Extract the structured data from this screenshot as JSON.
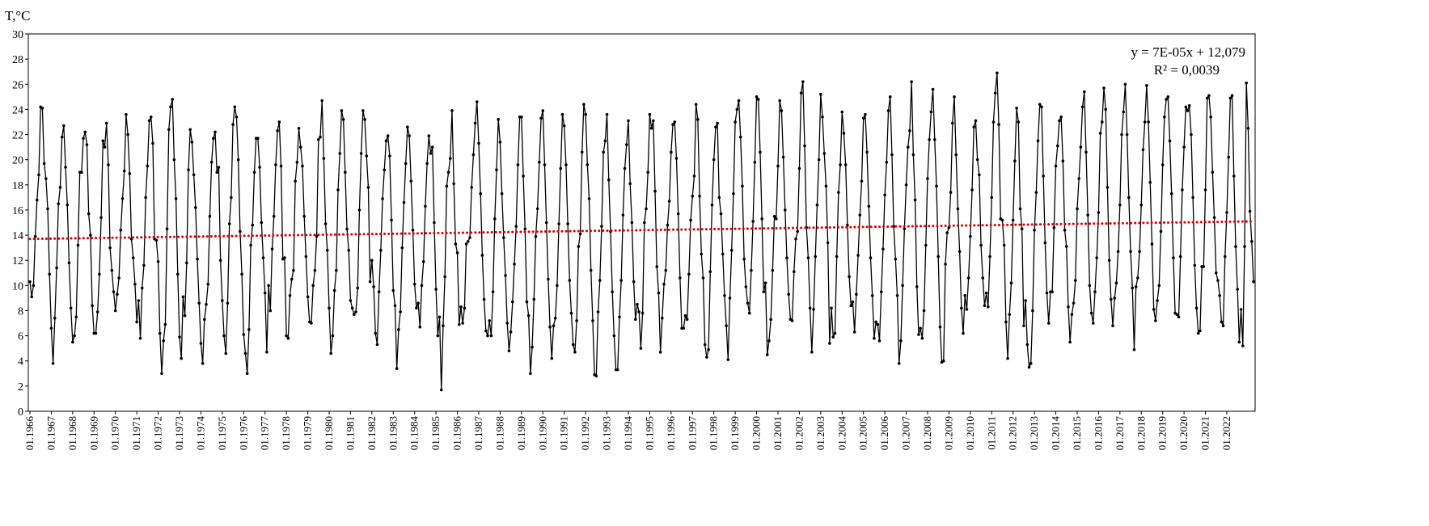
{
  "chart_data": {
    "type": "line",
    "ylabel": "T,°C",
    "xlabel": "",
    "title": "",
    "ylim": [
      0,
      30
    ],
    "yticks": [
      0,
      2,
      4,
      6,
      8,
      10,
      12,
      14,
      16,
      18,
      20,
      22,
      24,
      26,
      28,
      30
    ],
    "xtick_labels": [
      "01.1966",
      "01.1967",
      "01.1968",
      "01.1969",
      "01.1970",
      "01.1971",
      "01.1972",
      "01.1973",
      "01.1974",
      "01.1975",
      "01.1976",
      "01.1977",
      "01.1978",
      "01.1979",
      "01.1980",
      "01.1981",
      "01.1982",
      "01.1983",
      "01.1984",
      "01.1985",
      "01.1986",
      "01.1987",
      "01.1988",
      "01.1989",
      "01.1990",
      "01.1991",
      "01.1992",
      "01.1993",
      "01.1994",
      "01.1995",
      "01.1996",
      "01.1997",
      "01.1998",
      "01.1999",
      "01.2000",
      "01.2001",
      "01.2002",
      "01.2003",
      "01.2004",
      "01.2005",
      "01.2006",
      "01.2007",
      "01.2008",
      "01.2009",
      "01.2010",
      "01.2011",
      "01.2012",
      "01.2013",
      "01.2014",
      "01.2015",
      "01.2016",
      "01.2017",
      "01.2018",
      "01.2019",
      "01.2020",
      "01.2021",
      "01.2022"
    ],
    "grid": false,
    "frequency": "monthly",
    "start": "01.1966",
    "end": "12.2022",
    "series": [
      {
        "color": "#000000",
        "marker": "circle",
        "yearly": {
          "1966": [
            10.3,
            9.1,
            10.0,
            13.9,
            16.8,
            18.8,
            24.2,
            24.1,
            19.7,
            18.5,
            16.1,
            10.9
          ],
          "1967": [
            6.6,
            3.8,
            7.4,
            11.4,
            16.5,
            17.8,
            21.8,
            22.7,
            19.4,
            16.4,
            11.8,
            8.2
          ],
          "1968": [
            5.5,
            6.0,
            7.5,
            13.2,
            19.0,
            19.0,
            21.7,
            22.2,
            21.2,
            15.7,
            14.0,
            8.4
          ],
          "1969": [
            6.2,
            6.2,
            7.9,
            10.9,
            15.4,
            21.5,
            21.0,
            22.9,
            19.6,
            13.0,
            11.2,
            9.5
          ],
          "1970": [
            8.0,
            9.3,
            10.6,
            14.4,
            16.9,
            19.1,
            23.6,
            22.0,
            18.9,
            13.7,
            12.2,
            10.1
          ],
          "1971": [
            7.1,
            8.8,
            5.8,
            9.8,
            11.6,
            17.0,
            19.5,
            23.1,
            23.4,
            21.3,
            13.7,
            13.6
          ],
          "1972": [
            11.9,
            6.2,
            3.0,
            5.6,
            6.9,
            14.5,
            22.4,
            24.2,
            24.8,
            20.0,
            16.9,
            10.9
          ],
          "1973": [
            5.9,
            4.2,
            9.1,
            7.6,
            11.8,
            19.2,
            22.4,
            21.4,
            18.8,
            16.2,
            12.1,
            8.6
          ],
          "1974": [
            5.4,
            3.8,
            7.3,
            8.5,
            10.1,
            15.5,
            19.8,
            21.7,
            22.2,
            19.0,
            19.4,
            12.0
          ],
          "1975": [
            8.8,
            6.0,
            4.6,
            8.6,
            14.9,
            17.0,
            22.8,
            24.2,
            23.4,
            20.0,
            14.3,
            10.9
          ],
          "1976": [
            6.1,
            4.6,
            3.0,
            6.5,
            13.2,
            14.8,
            19.0,
            21.7,
            21.7,
            19.4,
            15.0,
            12.2
          ],
          "1977": [
            9.4,
            4.7,
            10.0,
            8.0,
            12.9,
            15.5,
            19.6,
            22.3,
            23.0,
            19.5,
            12.1,
            12.2
          ],
          "1978": [
            6.0,
            5.8,
            9.2,
            10.5,
            11.2,
            18.3,
            19.8,
            22.5,
            21.0,
            19.5,
            15.5,
            12.3
          ],
          "1979": [
            9.1,
            7.1,
            7.0,
            10.0,
            11.2,
            13.9,
            21.6,
            21.8,
            24.7,
            20.1,
            14.9,
            12.8
          ],
          "1980": [
            8.2,
            4.6,
            6.0,
            9.6,
            11.2,
            17.6,
            20.5,
            23.9,
            23.2,
            19.0,
            14.5,
            12.8
          ],
          "1981": [
            8.8,
            8.2,
            7.7,
            7.9,
            9.8,
            16.0,
            20.5,
            23.9,
            23.2,
            20.3,
            17.8,
            10.3
          ],
          "1982": [
            12.0,
            9.9,
            6.2,
            5.3,
            9.5,
            12.8,
            16.9,
            19.2,
            21.5,
            21.9,
            20.3,
            15.2
          ],
          "1983": [
            9.6,
            8.4,
            3.4,
            6.5,
            7.9,
            13.0,
            16.6,
            19.7,
            22.6,
            21.9,
            18.3,
            14.4
          ],
          "1984": [
            10.1,
            8.2,
            8.6,
            6.7,
            10.0,
            11.9,
            16.3,
            19.7,
            21.9,
            20.5,
            21.0,
            15.0
          ],
          "1985": [
            9.7,
            6.0,
            7.5,
            1.7,
            6.8,
            10.7,
            17.9,
            19.0,
            20.1,
            23.9,
            18.1,
            13.3
          ],
          "1986": [
            12.6,
            6.9,
            8.3,
            7.0,
            8.2,
            13.3,
            13.5,
            13.8,
            17.8,
            20.4,
            22.9,
            24.6
          ],
          "1987": [
            21.3,
            17.3,
            12.4,
            8.9,
            6.4,
            6.0,
            7.2,
            6.0,
            9.5,
            15.3,
            19.2,
            23.2
          ],
          "1988": [
            21.4,
            17.3,
            13.8,
            10.8,
            7.0,
            4.8,
            6.3,
            8.7,
            11.7,
            14.7,
            19.6,
            23.4
          ],
          "1989": [
            23.4,
            18.7,
            14.5,
            8.7,
            7.6,
            3.0,
            5.1,
            8.9,
            13.9,
            16.1,
            19.8,
            23.3
          ],
          "1990": [
            23.9,
            19.6,
            15.0,
            10.5,
            6.7,
            4.2,
            6.8,
            7.4,
            10.0,
            14.9,
            19.3,
            23.6
          ],
          "1991": [
            22.7,
            19.6,
            14.9,
            10.4,
            7.8,
            5.3,
            4.7,
            7.2,
            13.1,
            14.1,
            20.6,
            24.4
          ],
          "1992": [
            23.6,
            19.6,
            16.9,
            11.2,
            7.2,
            2.9,
            2.8,
            7.9,
            10.4,
            14.7,
            20.6,
            21.5
          ],
          "1993": [
            23.6,
            18.4,
            14.3,
            9.5,
            6.0,
            3.3,
            3.3,
            7.5,
            10.4,
            15.6,
            19.3,
            21.2
          ],
          "1994": [
            23.1,
            18.1,
            15.0,
            10.3,
            7.3,
            8.5,
            7.9,
            5.0,
            7.8,
            15.0,
            16.1,
            19.0
          ],
          "1995": [
            23.6,
            22.5,
            23.1,
            17.5,
            11.5,
            9.4,
            4.7,
            7.4,
            10.1,
            11.2,
            14.8,
            16.7
          ],
          "1996": [
            20.6,
            22.8,
            23.0,
            20.1,
            15.7,
            10.6,
            6.6,
            6.6,
            7.6,
            7.3,
            10.9,
            15.2
          ],
          "1997": [
            17.1,
            18.7,
            24.4,
            23.2,
            17.1,
            12.5,
            10.6,
            5.3,
            4.3,
            4.9,
            11.1,
            16.4
          ],
          "1998": [
            20.0,
            22.6,
            22.9,
            17.0,
            15.7,
            12.5,
            9.2,
            6.8,
            4.1,
            9.0,
            12.8,
            17.3
          ],
          "1999": [
            23.0,
            24.0,
            24.7,
            21.8,
            17.9,
            12.1,
            9.9,
            8.6,
            7.8,
            11.2,
            15.1,
            19.8
          ],
          "2000": [
            25.0,
            24.8,
            20.6,
            15.3,
            9.5,
            10.2,
            4.5,
            5.6,
            7.3,
            11.2,
            15.5,
            15.3
          ],
          "2001": [
            19.5,
            24.7,
            23.9,
            20.2,
            16.0,
            12.2,
            9.3,
            7.3,
            7.2,
            11.1,
            13.7,
            14.3
          ],
          "2002": [
            19.3,
            25.3,
            26.2,
            21.1,
            14.6,
            12.2,
            8.2,
            4.7,
            8.1,
            12.3,
            16.4,
            20.0
          ],
          "2003": [
            25.2,
            23.4,
            20.5,
            17.9,
            13.4,
            5.4,
            8.2,
            5.9,
            6.2,
            12.3,
            17.4,
            19.6
          ],
          "2004": [
            23.8,
            22.1,
            19.6,
            14.8,
            10.7,
            8.4,
            8.7,
            6.3,
            9.3,
            12.4,
            15.6,
            18.3
          ],
          "2005": [
            23.3,
            23.6,
            20.6,
            16.3,
            12.2,
            9.2,
            5.8,
            7.1,
            6.9,
            5.6,
            9.5,
            12.9
          ],
          "2006": [
            17.2,
            19.8,
            23.9,
            25.0,
            20.4,
            14.7,
            12.1,
            9.2,
            3.8,
            5.6,
            10.0,
            14.5
          ],
          "2007": [
            18.0,
            21.0,
            22.3,
            26.2,
            20.4,
            16.8,
            9.9,
            6.1,
            6.6,
            5.8,
            8.0,
            13.2
          ],
          "2008": [
            18.5,
            21.6,
            23.8,
            25.6,
            21.6,
            17.9,
            12.3,
            6.7,
            3.9,
            4.0,
            11.7,
            14.2
          ],
          "2009": [
            14.6,
            17.4,
            22.9,
            25.0,
            20.4,
            16.1,
            12.7,
            8.2,
            6.2,
            9.2,
            8.1,
            10.6
          ],
          "2010": [
            13.9,
            17.6,
            22.6,
            23.1,
            20.0,
            18.8,
            13.2,
            10.6,
            8.4,
            9.4,
            8.3,
            12.3
          ],
          "2011": [
            17.0,
            23.0,
            25.3,
            26.9,
            22.8,
            15.3,
            15.2,
            13.2,
            7.1,
            4.2,
            7.7,
            10.2
          ],
          "2012": [
            15.2,
            19.9,
            24.1,
            23.0,
            16.1,
            14.5,
            6.8,
            8.8,
            5.3,
            3.5,
            3.8,
            8.0
          ],
          "2013": [
            14.4,
            17.4,
            21.5,
            24.4,
            24.2,
            18.7,
            13.4,
            9.4,
            7.0,
            9.5,
            9.5,
            14.6
          ],
          "2014": [
            19.5,
            21.1,
            23.1,
            23.4,
            19.9,
            14.4,
            13.1,
            8.3,
            5.5,
            7.7,
            8.6,
            10.4
          ],
          "2015": [
            16.1,
            18.5,
            21.0,
            24.2,
            25.4,
            20.6,
            15.6,
            10.0,
            7.8,
            7.0,
            9.5,
            12.2
          ],
          "2016": [
            15.8,
            22.1,
            23.0,
            25.7,
            24.0,
            17.8,
            12.0,
            8.9,
            6.8,
            9.0,
            10.2,
            12.7
          ],
          "2017": [
            16.4,
            22.0,
            23.8,
            26.0,
            22.0,
            17.0,
            12.7,
            9.8,
            4.9,
            9.9,
            10.6,
            12.7
          ],
          "2018": [
            16.4,
            20.8,
            23.0,
            25.9,
            23.0,
            18.2,
            13.3,
            8.1,
            7.2,
            8.8,
            10.0,
            14.3
          ],
          "2019": [
            19.6,
            23.4,
            24.8,
            25.0,
            21.5,
            17.3,
            12.2,
            7.8,
            7.7,
            7.5,
            12.3,
            17.6
          ],
          "2020": [
            21.0,
            24.2,
            23.9,
            24.3,
            22.0,
            17.0,
            11.6,
            8.2,
            6.2,
            6.4,
            11.5,
            11.5
          ],
          "2021": [
            17.6,
            24.9,
            25.1,
            23.4,
            19.0,
            15.4,
            11.0,
            10.4,
            9.2,
            7.1,
            6.8,
            12.3
          ],
          "2022": [
            15.8,
            20.2,
            24.9,
            25.1,
            18.7,
            13.1,
            9.7,
            5.5,
            8.1,
            5.2,
            13.1,
            26.1
          ]
        },
        "tail": [
          22.5,
          15.9,
          13.5,
          10.3
        ]
      },
      {
        "type": "trendline",
        "style": "dotted",
        "color": "#e00000",
        "from": 13.7,
        "to": 15.1
      }
    ],
    "annotations": {
      "equation": "y = 7E-05x + 12,079",
      "r_squared": "R² = 0,0039"
    }
  }
}
